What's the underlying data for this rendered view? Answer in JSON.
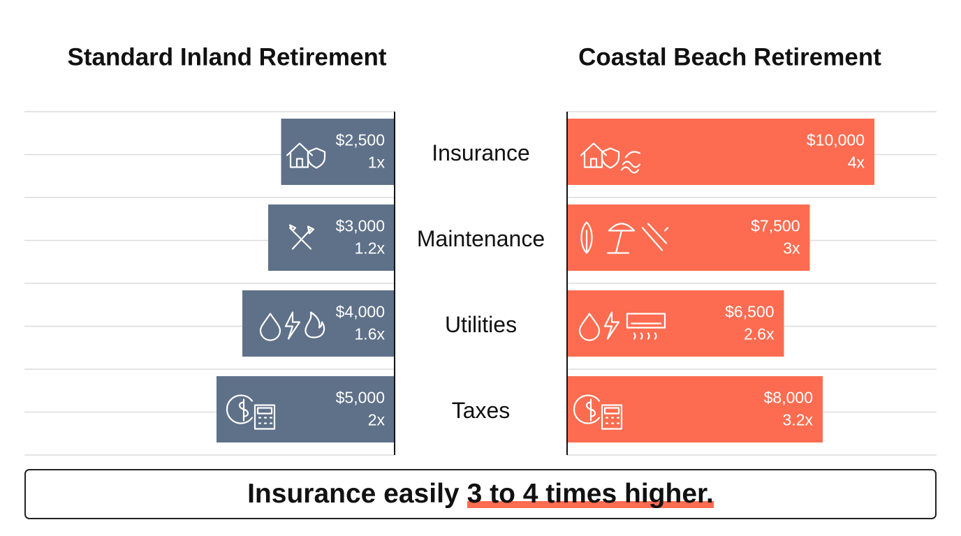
{
  "chart_data": {
    "type": "butterfly",
    "categories": [
      "Insurance",
      "Maintenance",
      "Utilities",
      "Taxes"
    ],
    "series": [
      {
        "name": "Standard Inland Retirement",
        "color": "#5f7189",
        "values": [
          2500,
          3000,
          4000,
          5000
        ],
        "value_labels": [
          "$2,500",
          "$3,000",
          "$4,000",
          "$5,000"
        ],
        "multiplier_labels": [
          "1x",
          "1.2x",
          "1.6x",
          "2x"
        ]
      },
      {
        "name": "Coastal Beach Retirement",
        "color": "#fd6c50",
        "values": [
          10000,
          7500,
          6500,
          8000
        ],
        "value_labels": [
          "$10,000",
          "$7,500",
          "$6,500",
          "$8,000"
        ],
        "multiplier_labels": [
          "4x",
          "3x",
          "2.6x",
          "3.2x"
        ]
      }
    ],
    "footnote": [
      "Insurance easily",
      "3 to 4 times higher."
    ],
    "highlight_color": "#fd6c50"
  }
}
